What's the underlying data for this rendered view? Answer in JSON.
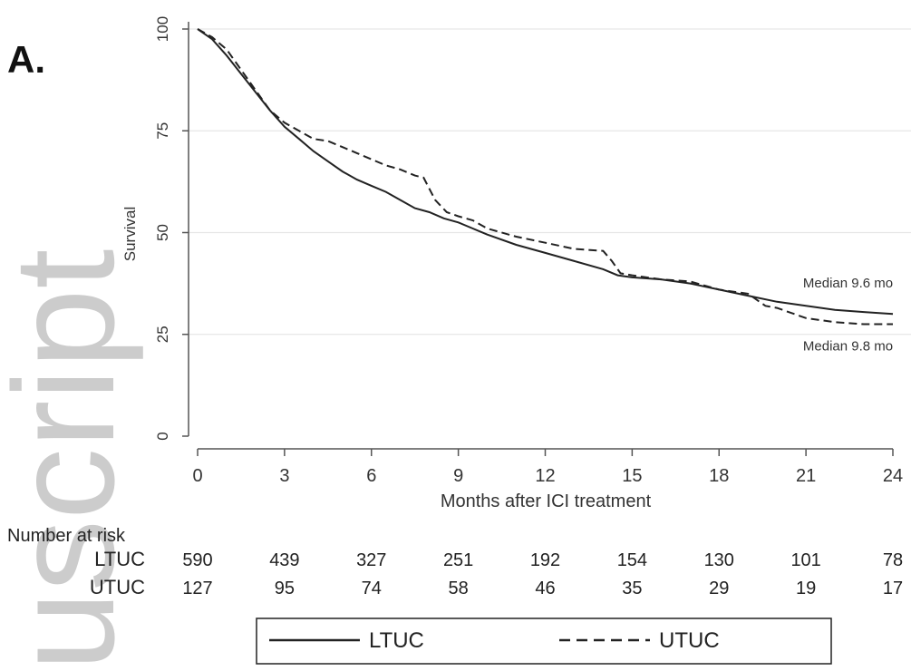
{
  "panel_label": "A.",
  "watermark_text": "uscript",
  "chart_data": {
    "type": "line",
    "title": "",
    "xlabel": "Months after ICI treatment",
    "ylabel": "Survival",
    "xlim": [
      0,
      24
    ],
    "ylim": [
      0,
      100
    ],
    "x_ticks": [
      0,
      3,
      6,
      9,
      12,
      15,
      18,
      21,
      24
    ],
    "x_tick_labels": [
      "0",
      "3",
      "6",
      "9",
      "12",
      "15",
      "18",
      "21",
      "24"
    ],
    "y_ticks": [
      0,
      25,
      50,
      75,
      100
    ],
    "y_tick_labels": [
      "0",
      "25",
      "50",
      "75",
      "100"
    ],
    "grid": "horizontal",
    "series": [
      {
        "name": "LTUC",
        "style": "solid",
        "color": "#222222",
        "x": [
          0,
          0.5,
          1,
          1.5,
          2,
          2.5,
          3,
          3.5,
          4,
          4.5,
          5,
          5.5,
          6,
          6.5,
          7,
          7.5,
          8,
          8.5,
          9,
          9.5,
          10,
          11,
          12,
          13,
          14,
          14.5,
          15,
          16,
          17,
          18,
          19,
          20,
          21,
          22,
          23,
          24
        ],
        "y": [
          100,
          97.5,
          93.5,
          89,
          84.5,
          80,
          76,
          73,
          70,
          67.5,
          65,
          63,
          61.5,
          60,
          58,
          56,
          55,
          53.5,
          52.5,
          51,
          49.5,
          47,
          45,
          43,
          41,
          39.5,
          39,
          38.5,
          37.5,
          36,
          34.5,
          33,
          32,
          31,
          30.5,
          30
        ]
      },
      {
        "name": "UTUC",
        "style": "dashed",
        "color": "#222222",
        "x": [
          0,
          0.5,
          1,
          1.5,
          2,
          2.5,
          3,
          3.5,
          4,
          4.5,
          5,
          5.5,
          6,
          6.5,
          7,
          7.5,
          7.8,
          8.2,
          8.6,
          9,
          9.5,
          10,
          11,
          12,
          13,
          14,
          14.3,
          14.6,
          15,
          16,
          17,
          18,
          19,
          19.6,
          20,
          21,
          22,
          23,
          24
        ],
        "y": [
          100,
          98,
          95,
          90,
          85,
          80,
          77,
          75,
          73,
          72.5,
          71,
          69.5,
          68,
          66.5,
          65.5,
          64,
          63.5,
          58,
          55,
          54,
          53,
          51,
          49,
          47.5,
          46,
          45.5,
          43,
          40,
          39.5,
          38.5,
          38,
          36,
          35,
          32,
          31.5,
          29,
          28,
          27.5,
          27.5
        ]
      }
    ],
    "annotations": [
      {
        "text": "Median 9.6 mo",
        "x": 20.9,
        "y": 36.5
      },
      {
        "text": "Median 9.8 mo",
        "x": 20.9,
        "y": 21
      }
    ],
    "risk_table": {
      "heading": "Number at risk",
      "timepoints": [
        0,
        3,
        6,
        9,
        12,
        15,
        18,
        21,
        24
      ],
      "rows": [
        {
          "label": "LTUC",
          "values": [
            "590",
            "439",
            "327",
            "251",
            "192",
            "154",
            "130",
            "101",
            "78"
          ]
        },
        {
          "label": "UTUC",
          "values": [
            "127",
            "95",
            "74",
            "58",
            "46",
            "35",
            "29",
            "19",
            "17"
          ]
        }
      ]
    },
    "legend": {
      "position": "bottom",
      "entries": [
        {
          "label": "LTUC",
          "style": "solid"
        },
        {
          "label": "UTUC",
          "style": "dashed"
        }
      ]
    }
  }
}
